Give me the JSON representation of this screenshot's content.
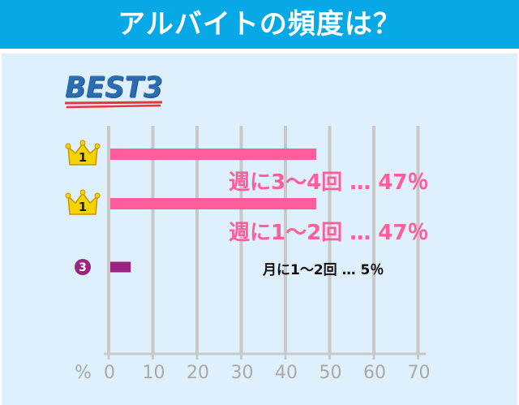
{
  "header": {
    "title": "アルバイトの頻度は？"
  },
  "badge": {
    "text": "BEST3"
  },
  "chart_data": {
    "type": "bar",
    "orientation": "horizontal",
    "categories": [
      "週に3～4回",
      "週に1～2回",
      "月に1～2回"
    ],
    "values": [
      47,
      47,
      5
    ],
    "ranks": [
      "1",
      "1",
      "3"
    ],
    "bar_labels": [
      "週に3～4回 … 47％",
      "週に1～2回 … 47％",
      "月に1～2回 … 5％"
    ],
    "xlabel": "%",
    "xlim": [
      0,
      70
    ],
    "ticks": [
      "0",
      "10",
      "20",
      "30",
      "40",
      "50",
      "60",
      "70"
    ],
    "grid": true,
    "colors": {
      "top": "#ff5d9b",
      "third": "#9b2481",
      "grid": "#c8c8c8",
      "crown": "#f5d300"
    }
  }
}
